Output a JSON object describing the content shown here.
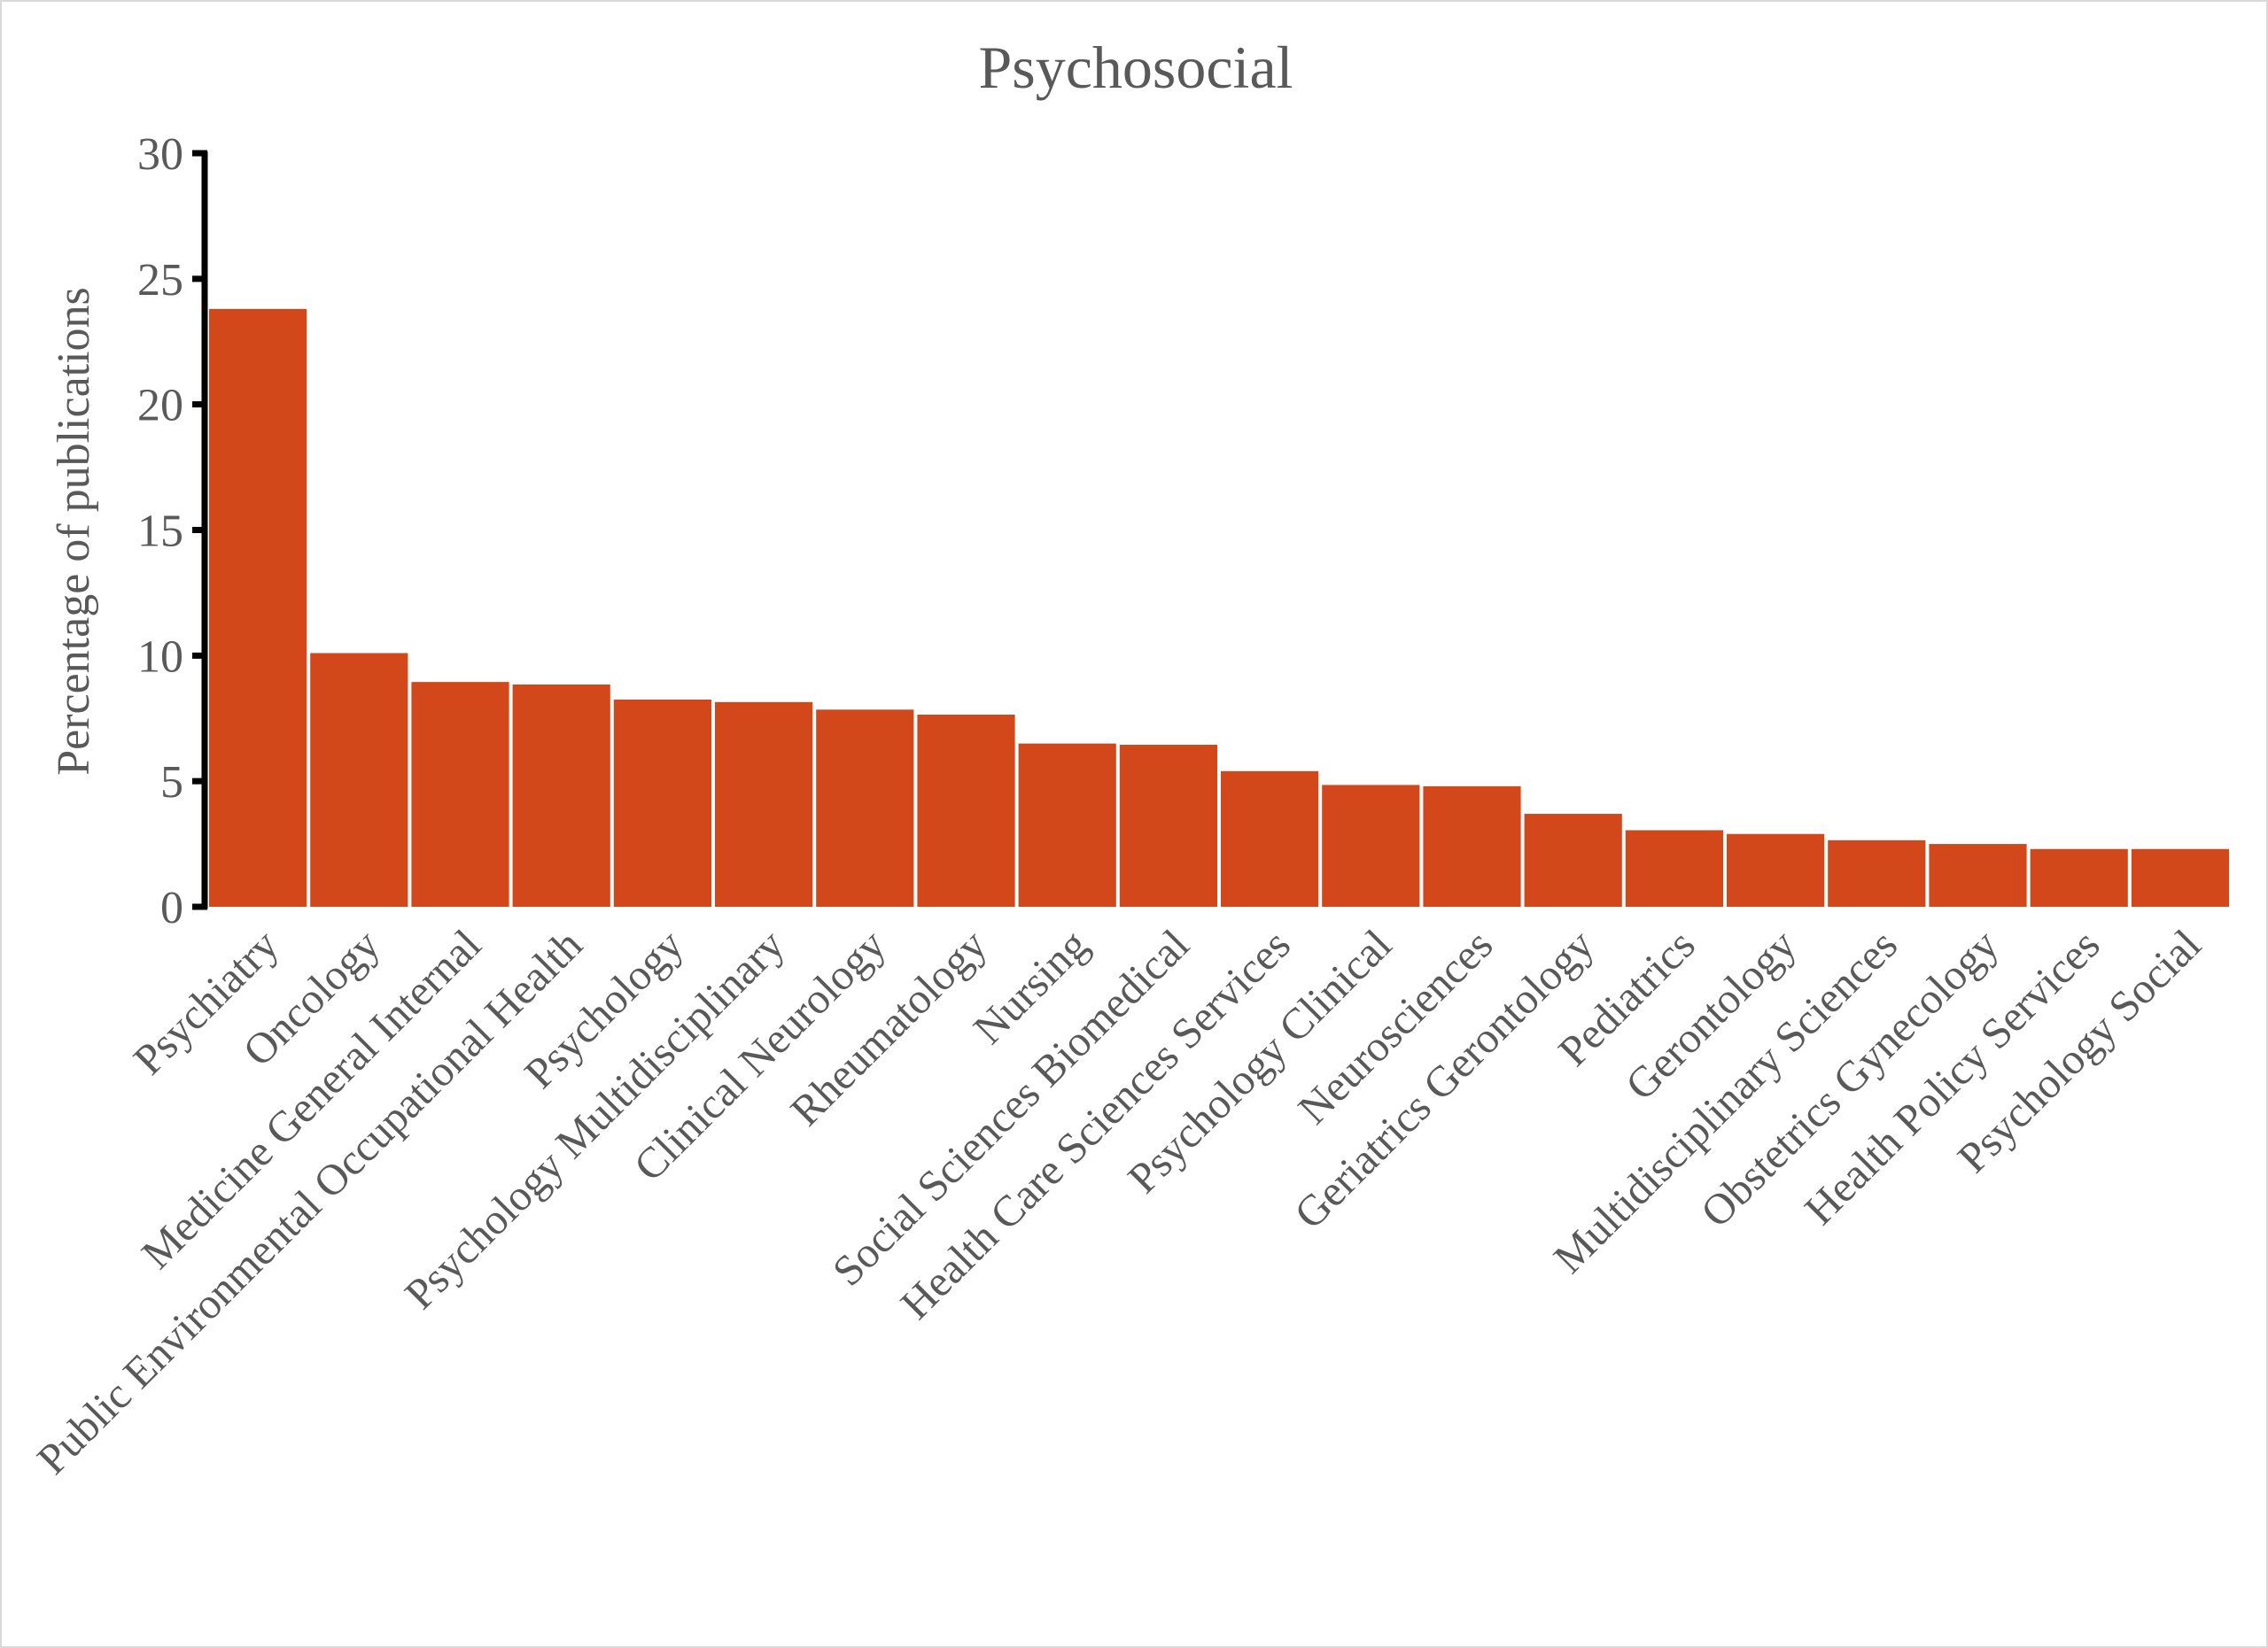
{
  "chart_data": {
    "type": "bar",
    "title": "Psychosocial",
    "xlabel": "",
    "ylabel": "Percentage of publications",
    "ylim": [
      0,
      30
    ],
    "yticks": [
      0,
      5,
      10,
      15,
      20,
      25,
      30
    ],
    "grid": false,
    "legend": "none",
    "bar_color": "#D2481A",
    "categories": [
      "Psychiatry",
      "Oncology",
      "Medicine General Internal",
      "Public Environmental Occupational Health",
      "Psychology",
      "Psychology Multidisciplinary",
      "Clinical Neurology",
      "Rheumatology",
      "Nursing",
      "Social Sciences Biomedical",
      "Health Care Sciences Services",
      "Psychology Clinical",
      "Neurosciences",
      "Geriatrics Gerontology",
      "Pediatrics",
      "Gerontology",
      "Multidisciplinary Sciences",
      "Obstetrics Gynecology",
      "Health Policy Services",
      "Psychology Social"
    ],
    "values": [
      23.8,
      10.1,
      8.95,
      8.85,
      8.25,
      8.15,
      7.85,
      7.65,
      6.5,
      6.45,
      5.4,
      4.85,
      4.8,
      3.7,
      3.05,
      2.9,
      2.65,
      2.5,
      2.3,
      2.3
    ]
  }
}
